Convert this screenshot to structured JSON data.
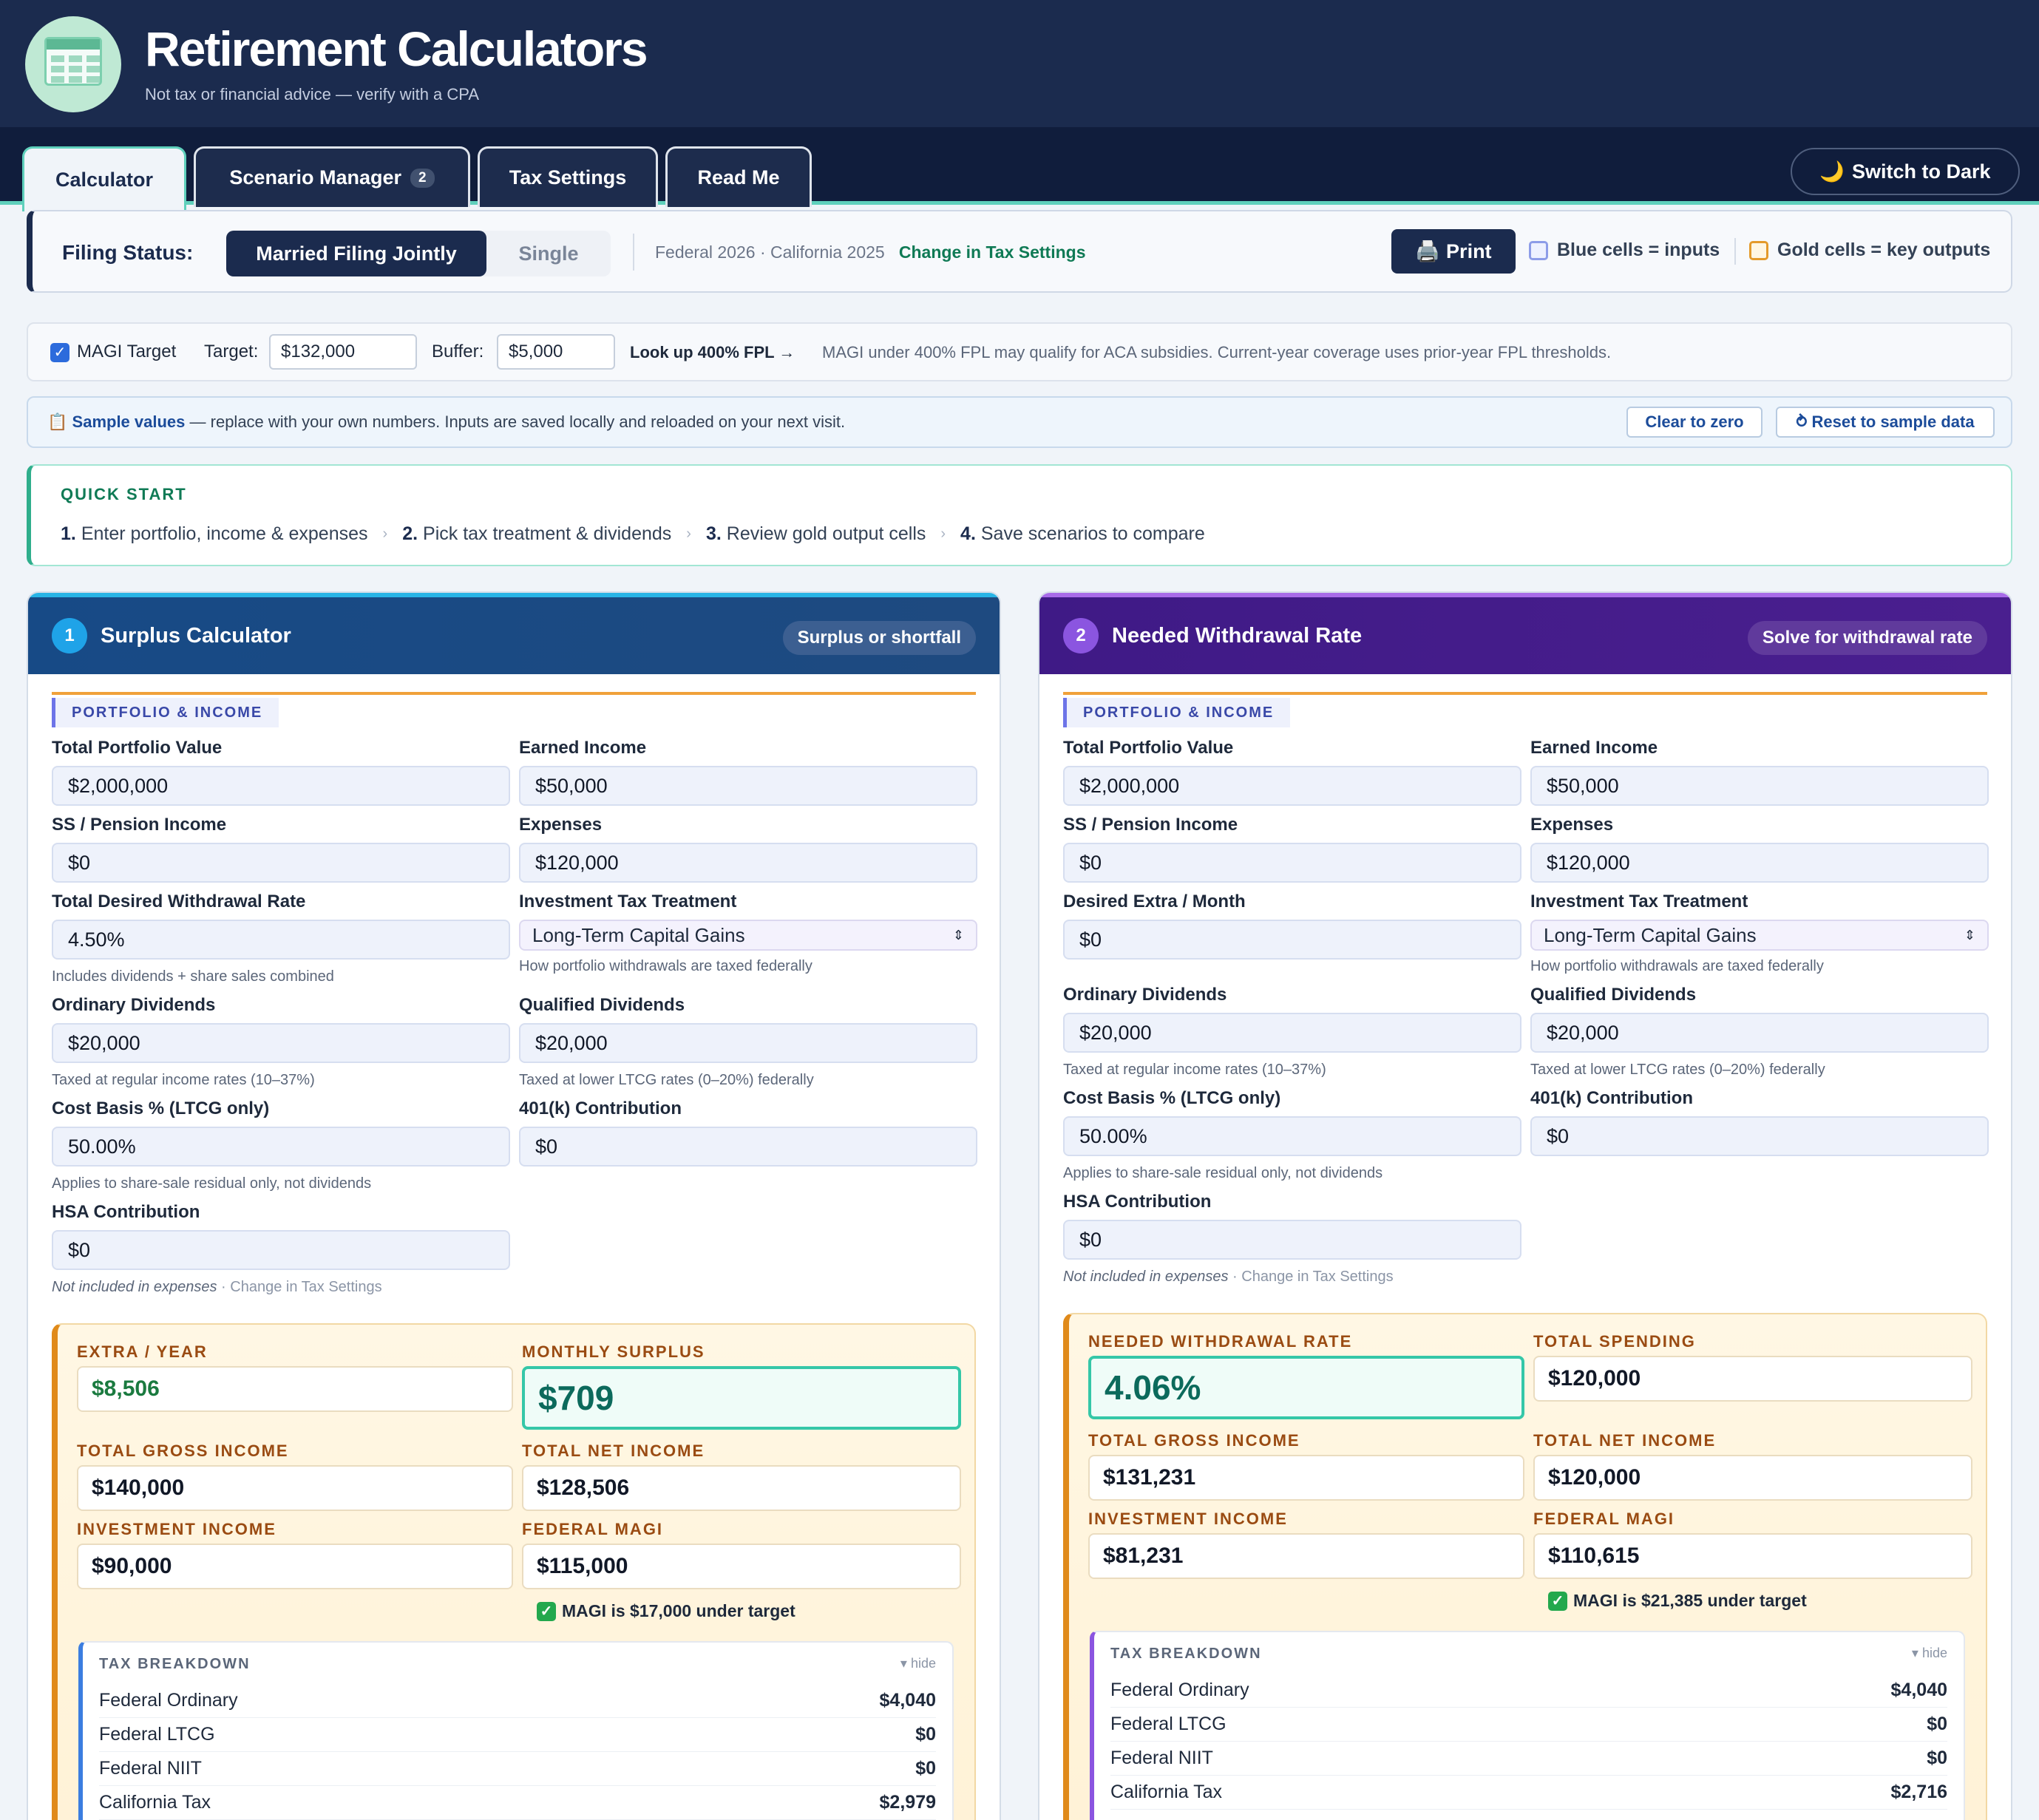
{
  "app": {
    "title": "Retirement Calculators",
    "subtitle": "Not tax or financial advice — verify with a CPA"
  },
  "tabs": [
    {
      "label": "Calculator",
      "active": true
    },
    {
      "label": "Scenario Manager",
      "badge": "2"
    },
    {
      "label": "Tax Settings"
    },
    {
      "label": "Read Me"
    }
  ],
  "theme_toggle": {
    "icon": "🌙",
    "label": "Switch to Dark"
  },
  "filing": {
    "label": "Filing Status:",
    "options": [
      "Married Filing Jointly",
      "Single"
    ],
    "selected": "Married Filing Jointly",
    "federal": "Federal 2026",
    "dot": "·",
    "state": "California 2025",
    "change_link": "Change in Tax Settings"
  },
  "toolbar": {
    "print_icon": "🖨️",
    "print_label": "Print",
    "legend_blue": "Blue cells = inputs",
    "legend_gold": "Gold cells = key outputs"
  },
  "magi": {
    "checkbox_label": "MAGI Target",
    "target_label": "Target:",
    "target_value": "$132,000",
    "buffer_label": "Buffer:",
    "buffer_value": "$5,000",
    "lookup_link": "Look up 400% FPL →",
    "note": "MAGI under 400% FPL may qualify for ACA subsidies. Current-year coverage uses prior-year FPL thresholds."
  },
  "sample": {
    "icon": "📋",
    "bold": "Sample values",
    "text": " — replace with your own numbers. Inputs are saved locally and reloaded on your next visit.",
    "clear_label": "Clear to zero",
    "reset_label": "⥁ Reset to sample data"
  },
  "quickstart": {
    "title": "QUICK START",
    "steps": [
      {
        "n": "1.",
        "t": "Enter portfolio, income & expenses"
      },
      {
        "n": "2.",
        "t": "Pick tax treatment & dividends"
      },
      {
        "n": "3.",
        "t": "Review gold output cells"
      },
      {
        "n": "4.",
        "t": "Save scenarios to compare"
      }
    ],
    "sep": "›"
  },
  "surplus": {
    "num": "1",
    "title": "Surplus Calculator",
    "pill": "Surplus or shortfall",
    "section": "PORTFOLIO & INCOME",
    "portfolio_label": "Total Portfolio Value",
    "portfolio": "$2,000,000",
    "earned_label": "Earned Income",
    "earned": "$50,000",
    "ss_label": "SS / Pension Income",
    "ss": "$0",
    "expenses_label": "Expenses",
    "expenses": "$120,000",
    "rate_label": "Total Desired Withdrawal Rate",
    "rate": "4.50%",
    "rate_hint": "Includes dividends + share sales combined",
    "treatment_label": "Investment Tax Treatment",
    "treatment": "Long-Term Capital Gains",
    "treatment_hint": "How portfolio withdrawals are taxed federally",
    "ord_label": "Ordinary Dividends",
    "ord": "$20,000",
    "ord_hint": "Taxed at regular income rates (10–37%)",
    "qual_label": "Qualified Dividends",
    "qual": "$20,000",
    "qual_hint": "Taxed at lower LTCG rates (0–20%) federally",
    "basis_label": "Cost Basis % (LTCG only)",
    "basis": "50.00%",
    "basis_hint": "Applies to share-sale residual only, not dividends",
    "k401_label": "401(k) Contribution",
    "k401": "$0",
    "hsa_label": "HSA Contribution",
    "hsa": "$0",
    "hsa_hint_i": "Not included in expenses",
    "hsa_hint": " · Change in Tax Settings",
    "out": {
      "extra_label": "EXTRA / YEAR",
      "extra": "$8,506",
      "monthly_label": "MONTHLY SURPLUS",
      "monthly": "$709",
      "gross_label": "TOTAL GROSS INCOME",
      "gross": "$140,000",
      "net_label": "TOTAL NET INCOME",
      "net": "$128,506",
      "inv_label": "INVESTMENT INCOME",
      "inv": "$90,000",
      "magi_label": "FEDERAL MAGI",
      "magi": "$115,000",
      "magi_status": "MAGI is $17,000 under target"
    },
    "tax": {
      "title": "TAX BREAKDOWN",
      "hide": "▾ hide",
      "rows": [
        {
          "k": "Federal Ordinary",
          "v": "$4,040"
        },
        {
          "k": "Federal LTCG",
          "v": "$0"
        },
        {
          "k": "Federal NIIT",
          "v": "$0"
        },
        {
          "k": "California Tax",
          "v": "$2,979"
        }
      ]
    }
  },
  "needed": {
    "num": "2",
    "title": "Needed Withdrawal Rate",
    "pill": "Solve for withdrawal rate",
    "section": "PORTFOLIO & INCOME",
    "portfolio_label": "Total Portfolio Value",
    "portfolio": "$2,000,000",
    "earned_label": "Earned Income",
    "earned": "$50,000",
    "ss_label": "SS / Pension Income",
    "ss": "$0",
    "expenses_label": "Expenses",
    "expenses": "$120,000",
    "extra_label": "Desired Extra / Month",
    "extra": "$0",
    "treatment_label": "Investment Tax Treatment",
    "treatment": "Long-Term Capital Gains",
    "treatment_hint": "How portfolio withdrawals are taxed federally",
    "ord_label": "Ordinary Dividends",
    "ord": "$20,000",
    "ord_hint": "Taxed at regular income rates (10–37%)",
    "qual_label": "Qualified Dividends",
    "qual": "$20,000",
    "qual_hint": "Taxed at lower LTCG rates (0–20%) federally",
    "basis_label": "Cost Basis % (LTCG only)",
    "basis": "50.00%",
    "basis_hint": "Applies to share-sale residual only, not dividends",
    "k401_label": "401(k) Contribution",
    "k401": "$0",
    "hsa_label": "HSA Contribution",
    "hsa": "$0",
    "hsa_hint_i": "Not included in expenses",
    "hsa_hint": " · Change in Tax Settings",
    "out": {
      "rate_label": "NEEDED WITHDRAWAL RATE",
      "rate": "4.06%",
      "spend_label": "TOTAL SPENDING",
      "spend": "$120,000",
      "gross_label": "TOTAL GROSS INCOME",
      "gross": "$131,231",
      "net_label": "TOTAL NET INCOME",
      "net": "$120,000",
      "inv_label": "INVESTMENT INCOME",
      "inv": "$81,231",
      "magi_label": "FEDERAL MAGI",
      "magi": "$110,615",
      "magi_status": "MAGI is $21,385 under target"
    },
    "tax": {
      "title": "TAX BREAKDOWN",
      "hide": "▾ hide",
      "rows": [
        {
          "k": "Federal Ordinary",
          "v": "$4,040"
        },
        {
          "k": "Federal LTCG",
          "v": "$0"
        },
        {
          "k": "Federal NIIT",
          "v": "$0"
        },
        {
          "k": "California Tax",
          "v": "$2,716"
        }
      ]
    }
  },
  "colors": {
    "header": "#1b2b4e",
    "accent_teal": "#5fd0bc",
    "panel1": "#1e4c8c",
    "panel2": "#4a1c92",
    "gold": "#e08a1a"
  }
}
